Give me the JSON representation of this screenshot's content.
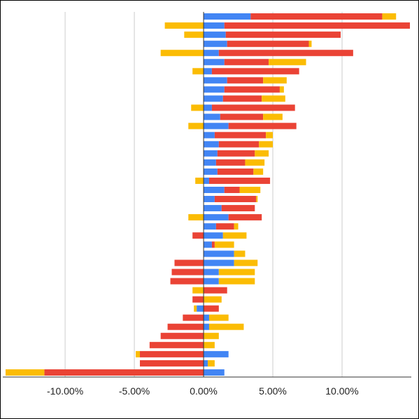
{
  "chart_data": {
    "type": "bar",
    "orientation": "horizontal",
    "stacked": true,
    "xlim": [
      -14.5,
      15
    ],
    "x_ticks": [
      -10,
      -5,
      0,
      5,
      10
    ],
    "x_tick_labels": [
      "-10.00%",
      "-5.00%",
      "0.00%",
      "5.00%",
      "10.00%"
    ],
    "grid": "vertical",
    "legend": "none",
    "colors": {
      "blue": "#4285f4",
      "red": "#ea4335",
      "yellow": "#fbbc04",
      "grid": "#cccccc",
      "axis": "#333333"
    },
    "series": [
      {
        "color": "#4285f4",
        "values": [
          3.4,
          1.5,
          1.6,
          1.7,
          1.1,
          1.5,
          0.6,
          1.7,
          1.5,
          1.4,
          0.6,
          1.2,
          1.8,
          0.8,
          1.1,
          1.0,
          0.9,
          1.0,
          0.4,
          1.5,
          0.8,
          1.3,
          1.8,
          0.9,
          1.4,
          0.6,
          2.2,
          2.2,
          1.1,
          1.1,
          0,
          0,
          -0.5,
          0.4,
          0.4,
          0,
          0,
          1.8,
          0.3,
          1.5
        ]
      },
      {
        "color": "#ea4335",
        "values": [
          9.5,
          13.4,
          8.3,
          5.9,
          9.7,
          3.2,
          6.3,
          2.6,
          4.0,
          2.8,
          6.0,
          3.1,
          4.9,
          3.7,
          2.9,
          2.7,
          2.1,
          2.6,
          4.4,
          1.1,
          3.0,
          2.4,
          2.4,
          1.3,
          -0.8,
          0.2,
          0,
          -2.1,
          -2.3,
          -2.4,
          1.7,
          -0.8,
          1.1,
          -1.5,
          -2.6,
          -3.1,
          -3.9,
          -4.6,
          -4.6,
          -11.5
        ]
      },
      {
        "color": "#fbbc04",
        "values": [
          1.0,
          -2.8,
          -1.4,
          0.2,
          -3.1,
          2.7,
          -0.8,
          1.7,
          0.3,
          1.7,
          -0.9,
          1.4,
          -1.1,
          0.5,
          1.0,
          1.0,
          1.4,
          0.7,
          -0.6,
          1.5,
          0.1,
          0,
          -1.1,
          0.3,
          1.7,
          1.4,
          0.8,
          1.7,
          2.6,
          2.6,
          -0.8,
          1.3,
          -0.2,
          1.4,
          2.5,
          1.1,
          0.8,
          -0.3,
          0.5,
          -2.8
        ]
      }
    ]
  }
}
